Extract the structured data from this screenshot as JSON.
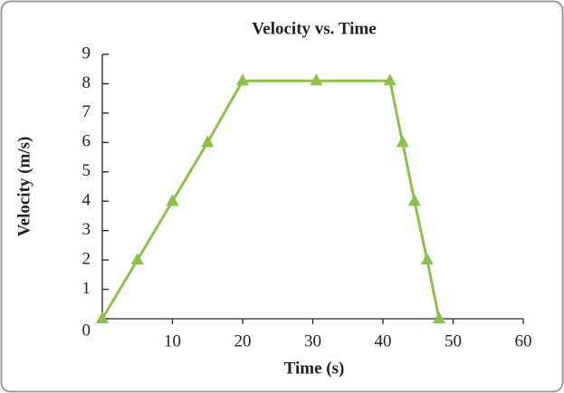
{
  "chart_data": {
    "type": "line",
    "title": "Velocity vs. Time",
    "x_label": "Time (s)",
    "y_label": "Velocity (m/s)",
    "x": [
      0,
      5,
      10,
      15,
      20,
      30.5,
      41,
      42.8,
      44.5,
      46.3,
      48
    ],
    "series": [
      {
        "name": "Velocity",
        "color": "#8cc04b",
        "values": [
          0,
          2,
          4,
          6,
          8.1,
          8.1,
          8.1,
          6,
          4,
          2,
          0
        ]
      }
    ],
    "xlim": [
      0,
      60
    ],
    "xticks": [
      10,
      20,
      30,
      40,
      50,
      60
    ],
    "ylim": [
      0,
      9
    ],
    "yticks": [
      0,
      1,
      2,
      3,
      4,
      5,
      6,
      7,
      8,
      9
    ]
  }
}
